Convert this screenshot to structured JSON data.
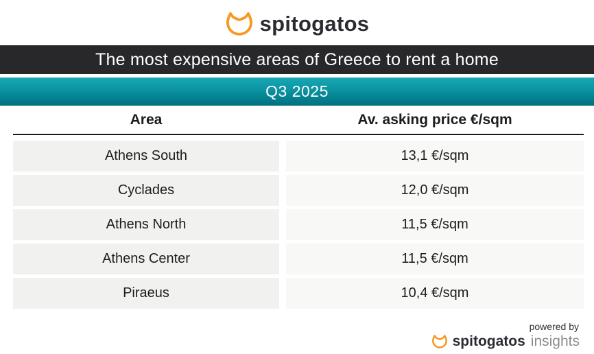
{
  "brand": {
    "name": "spitogatos",
    "orange": "#F8981D",
    "dark": "#2B2B33"
  },
  "banner": {
    "title": "The most expensive areas of Greece to rent a home",
    "bg": "#28282A",
    "text_color": "#FFFFFF"
  },
  "period": {
    "label": "Q3 2025",
    "bg_gradient_top": "#1AA8B6",
    "bg_gradient_bottom": "#006F7E"
  },
  "table": {
    "columns": [
      "Area",
      "Av. asking price €/sqm"
    ],
    "rows": [
      {
        "area": "Athens South",
        "price": "13,1 €/sqm"
      },
      {
        "area": "Cyclades",
        "price": "12,0 €/sqm"
      },
      {
        "area": "Athens North",
        "price": "11,5 €/sqm"
      },
      {
        "area": "Athens Center",
        "price": "11,5 €/sqm"
      },
      {
        "area": "Piraeus",
        "price": "10,4 €/sqm"
      }
    ],
    "cell_bg_left": "#F1F1EF",
    "cell_bg_right": "#F8F8F6"
  },
  "footer": {
    "powered_by": "powered by",
    "brand": "spitogatos",
    "suffix": "insights"
  },
  "chart_data": {
    "type": "table",
    "title": "The most expensive areas of Greece to rent a home",
    "subtitle": "Q3 2025",
    "columns": [
      "Area",
      "Av. asking price €/sqm"
    ],
    "categories": [
      "Athens South",
      "Cyclades",
      "Athens North",
      "Athens Center",
      "Piraeus"
    ],
    "values_eur_per_sqm": [
      13.1,
      12.0,
      11.5,
      11.5,
      10.4
    ],
    "value_labels": [
      "13,1 €/sqm",
      "12,0 €/sqm",
      "11,5 €/sqm",
      "11,5 €/sqm",
      "10,4 €/sqm"
    ]
  }
}
